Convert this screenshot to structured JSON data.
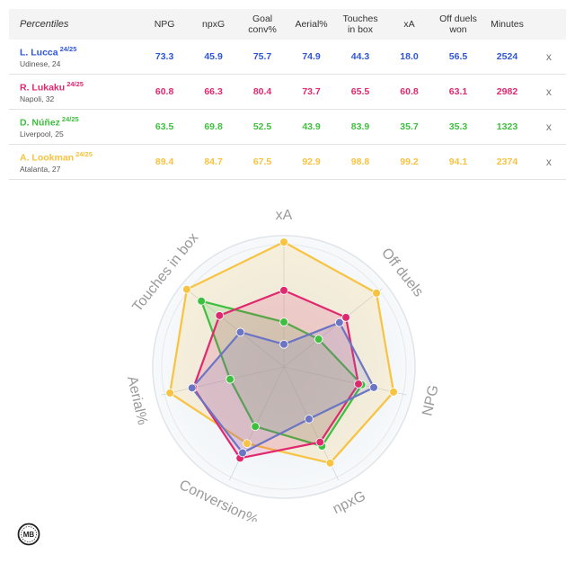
{
  "table": {
    "header_label": "Percentiles",
    "columns": [
      "NPG",
      "npxG",
      "Goal\nconv%",
      "Aerial%",
      "Touches\nin box",
      "xA",
      "Off duels\nwon",
      "Minutes"
    ],
    "remove_label": "x"
  },
  "players": [
    {
      "name": "L. Lucca",
      "season": "24/25",
      "team": "Udinese, 24",
      "color": "#2f56d6",
      "stats": [
        "73.3",
        "45.9",
        "75.7",
        "74.9",
        "44.3",
        "18.0",
        "56.5",
        "2524"
      ]
    },
    {
      "name": "R. Lukaku",
      "season": "24/25",
      "team": "Napoli, 32",
      "color": "#e0286e",
      "stats": [
        "60.8",
        "66.3",
        "80.4",
        "73.7",
        "65.5",
        "60.8",
        "63.1",
        "2982"
      ]
    },
    {
      "name": "D. Núñez",
      "season": "24/25",
      "team": "Liverpool, 25",
      "color": "#3fbf3f",
      "stats": [
        "63.5",
        "69.8",
        "52.5",
        "43.9",
        "83.9",
        "35.7",
        "35.3",
        "1323"
      ]
    },
    {
      "name": "A. Lookman",
      "season": "24/25",
      "team": "Atalanta, 27",
      "color": "#f7c340",
      "stats": [
        "89.4",
        "84.7",
        "67.5",
        "92.9",
        "98.8",
        "99.2",
        "94.1",
        "2374"
      ]
    }
  ],
  "chart_data": {
    "type": "radar",
    "axes": [
      "xA",
      "Off duels",
      "NPG",
      "npxG",
      "Conversion%",
      "Aerial%",
      "Touches in box"
    ],
    "range": [
      0,
      100
    ],
    "series": [
      {
        "name": "A. Lookman",
        "color": "#f7c340",
        "values": [
          99.2,
          94.1,
          89.4,
          84.7,
          67.5,
          92.9,
          98.8
        ]
      },
      {
        "name": "D. Núñez",
        "color": "#3fbf3f",
        "values": [
          35.7,
          35.3,
          63.5,
          69.8,
          52.5,
          43.9,
          83.9
        ]
      },
      {
        "name": "R. Lukaku",
        "color": "#e0286e",
        "values": [
          60.8,
          63.1,
          60.8,
          66.3,
          80.4,
          73.7,
          65.5
        ]
      },
      {
        "name": "L. Lucca",
        "color": "#6c74c4",
        "values": [
          18.0,
          56.5,
          73.3,
          45.9,
          75.7,
          74.9,
          44.3
        ]
      }
    ]
  },
  "logo": {
    "text": "MB"
  }
}
